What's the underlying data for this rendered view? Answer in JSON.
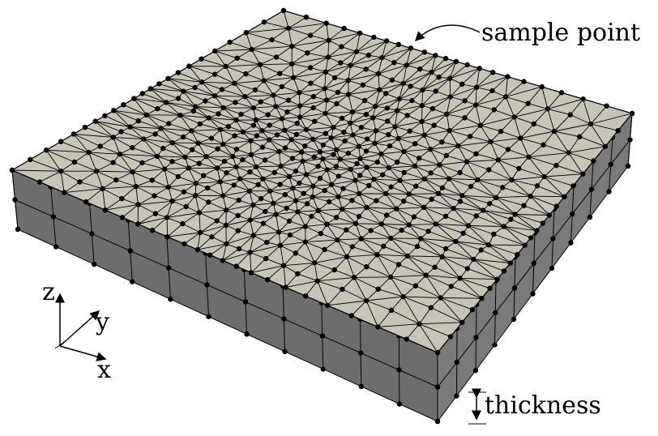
{
  "labels": {
    "sample_point": "sample point",
    "thickness": "thickness",
    "axis_z": "z",
    "axis_y": "y",
    "axis_x": "x"
  },
  "colors": {
    "top_face": "#c8c4b8",
    "side_front": "#6d6d6d",
    "side_right": "#7a7a7a",
    "edge": "#000000",
    "node": "#000000"
  }
}
